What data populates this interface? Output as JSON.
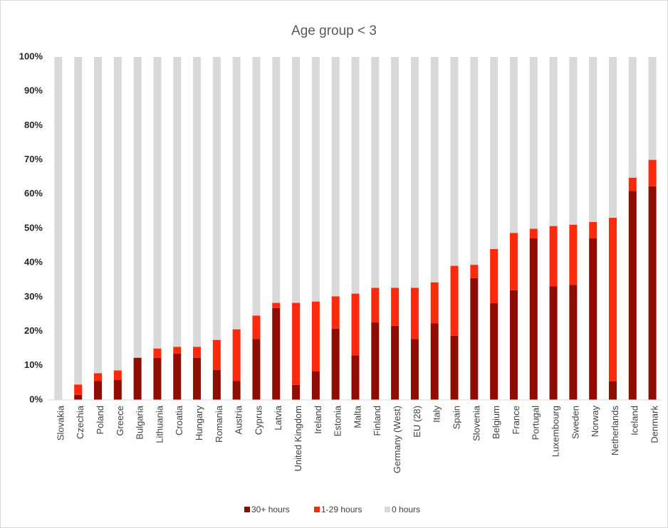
{
  "chart_data": {
    "type": "stacked_bar_100",
    "title": "Age group < 3",
    "categories": [
      "Slovakia",
      "Czechia",
      "Poland",
      "Greece",
      "Bulgaria",
      "Lithuania",
      "Croatia",
      "Hungary",
      "Romania",
      "Austria",
      "Cyprus",
      "Latvia",
      "United Kingdom",
      "Ireland",
      "Estonia",
      "Malta",
      "Finland",
      "Germany (West)",
      "EU (28)",
      "Italy",
      "Spain",
      "Slovenia",
      "Belgium",
      "France",
      "Portugal",
      "Luxembourg",
      "Sweden",
      "Norway",
      "Netherlands",
      "Iceland",
      "Denmark"
    ],
    "series": [
      {
        "name": "30+ hours",
        "color": "#8e0c00",
        "values": [
          0,
          1.5,
          5.5,
          5.8,
          12.3,
          12.3,
          13.5,
          12.3,
          8.7,
          5.5,
          17.8,
          26.8,
          4.4,
          8.3,
          20.8,
          13,
          22.6,
          21.6,
          17.8,
          22.3,
          18.7,
          35.5,
          28.2,
          32,
          47.1,
          33.1,
          33.5,
          47.1,
          5.4,
          60.9,
          62.3
        ]
      },
      {
        "name": "1-29 hours",
        "color": "#ff2a0e",
        "values": [
          0,
          3,
          2.3,
          2.8,
          0,
          2.7,
          2,
          3.2,
          8.8,
          15.1,
          6.8,
          1.5,
          23.9,
          20.4,
          9.4,
          18,
          10.1,
          11.1,
          14.9,
          12,
          20.4,
          3.9,
          15.8,
          16.7,
          2.8,
          17.6,
          17.6,
          4.8,
          47.7,
          3.9,
          7.7
        ]
      },
      {
        "name": "0 hours",
        "color": "#d9d9d9",
        "values": [
          100,
          95.5,
          92.2,
          91.4,
          87.7,
          85,
          84.5,
          84.5,
          82.5,
          79.4,
          75.4,
          71.7,
          71.7,
          71.3,
          69.8,
          69,
          67.3,
          67.3,
          67.3,
          65.7,
          60.9,
          60.6,
          56,
          51.3,
          50.1,
          49.3,
          48.9,
          48.1,
          46.9,
          35.2,
          30
        ]
      }
    ],
    "ylim": [
      0,
      100
    ],
    "yticks": [
      {
        "value": 0,
        "label": "0%"
      },
      {
        "value": 10,
        "label": "10%"
      },
      {
        "value": 20,
        "label": "20%"
      },
      {
        "value": 30,
        "label": "30%"
      },
      {
        "value": 40,
        "label": "40%"
      },
      {
        "value": 50,
        "label": "50%"
      },
      {
        "value": 60,
        "label": "60%"
      },
      {
        "value": 70,
        "label": "70%"
      },
      {
        "value": 80,
        "label": "80%"
      },
      {
        "value": 90,
        "label": "90%"
      },
      {
        "value": 100,
        "label": "100%"
      }
    ],
    "legend": "bottom"
  }
}
